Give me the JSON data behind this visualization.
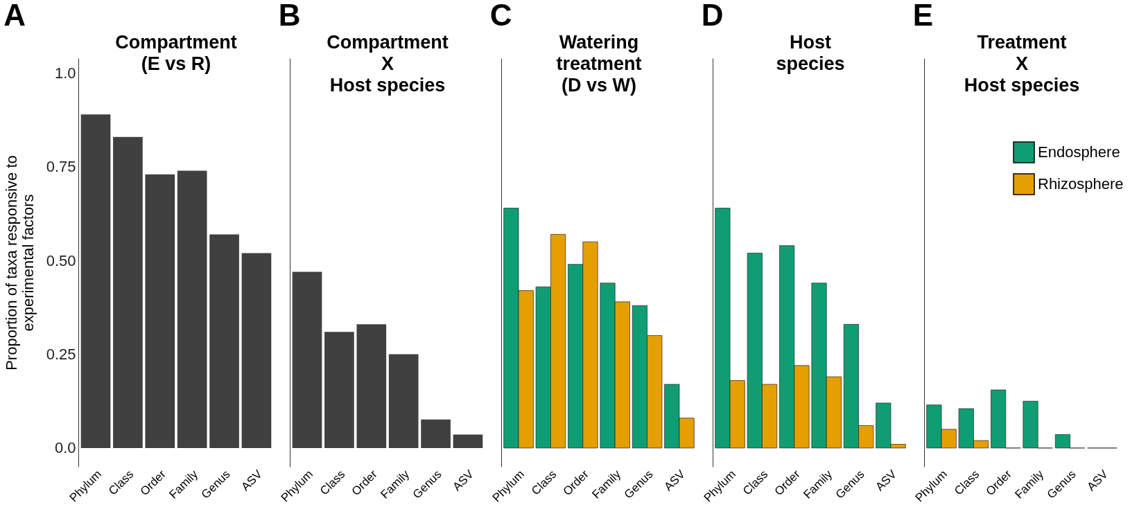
{
  "chart_data": [
    {
      "type": "bar",
      "title": "A",
      "subtitle": "Compartment\n(E vs R)",
      "ylabel": "Proportion of taxa responsive to\nexperimental factors",
      "categories": [
        "Phylum",
        "Class",
        "Order",
        "Family",
        "Genus",
        "ASV"
      ],
      "series": [
        {
          "color": "#404040",
          "values": [
            0.89,
            0.83,
            0.73,
            0.74,
            0.57,
            0.52
          ]
        }
      ],
      "ylim": [
        -0.05,
        1.04
      ],
      "yticks": [
        {
          "value": 0,
          "label": "0.0"
        },
        0.25,
        {
          "value": 0.5,
          "label": "0.50"
        },
        0.75,
        {
          "value": 1,
          "label": "1.0"
        }
      ],
      "grid": false
    },
    {
      "type": "bar",
      "title": "B",
      "subtitle": "Compartment\nX\nHost species",
      "categories": [
        "Phylum",
        "Class",
        "Order",
        "Family",
        "Genus",
        "ASV"
      ],
      "series": [
        {
          "color": "#404040",
          "values": [
            0.47,
            0.31,
            0.33,
            0.25,
            0.076,
            0.036
          ]
        }
      ],
      "ylim": [
        -0.05,
        1.04
      ],
      "tick_labels": "x",
      "grid": false
    },
    {
      "type": "bar",
      "title": "C",
      "subtitle": "Watering\ntreatment\n(D vs W)",
      "categories": [
        "Phylum",
        "Class",
        "Order",
        "Family",
        "Genus",
        "ASV"
      ],
      "series": [
        {
          "color": "#0f9e74",
          "values": [
            0.64,
            0.43,
            0.49,
            0.44,
            0.38,
            0.17
          ]
        },
        {
          "color": "#e69f00",
          "values": [
            0.42,
            0.57,
            0.55,
            0.39,
            0.3,
            0.08
          ]
        }
      ],
      "ylim": [
        -0.05,
        1.04
      ],
      "tick_labels": "x",
      "grid": false
    },
    {
      "type": "bar",
      "title": "D",
      "subtitle": "Host\nspecies",
      "categories": [
        "Phylum",
        "Class",
        "Order",
        "Family",
        "Genus",
        "ASV"
      ],
      "series": [
        {
          "color": "#0f9e74",
          "values": [
            0.64,
            0.52,
            0.54,
            0.44,
            0.33,
            0.12
          ]
        },
        {
          "color": "#e69f00",
          "values": [
            0.18,
            0.17,
            0.22,
            0.19,
            0.06,
            0.01
          ]
        }
      ],
      "ylim": [
        -0.05,
        1.04
      ],
      "tick_labels": "x",
      "grid": false
    },
    {
      "type": "bar",
      "title": "E",
      "subtitle": "Treatment\nX\nHost species",
      "categories": [
        "Phylum",
        "Class",
        "Order",
        "Family",
        "Genus",
        "ASV"
      ],
      "series": [
        {
          "name": "Endosphere",
          "color": "#0f9e74",
          "values": [
            0.115,
            0.105,
            0.155,
            0.125,
            0.036,
            0
          ]
        },
        {
          "name": "Rhizosphere",
          "color": "#e69f00",
          "values": [
            0.05,
            0.02,
            0,
            0,
            0,
            0
          ]
        }
      ],
      "ylim": [
        -0.05,
        1.04
      ],
      "tick_labels": "x",
      "grid": false,
      "legend": "top right"
    }
  ]
}
